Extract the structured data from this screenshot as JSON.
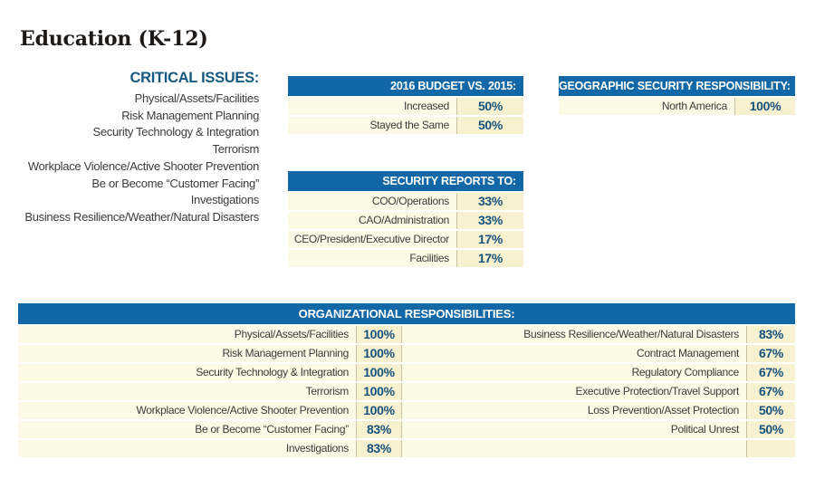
{
  "page_title": "Education (K-12)",
  "critical_issues": {
    "heading": "CRITICAL ISSUES:",
    "items": [
      "Physical/Assets/Facilities",
      "Risk Management Planning",
      "Security Technology & Integration",
      "Terrorism",
      "Workplace Violence/Active Shooter Prevention",
      "Be or Become “Customer Facing”",
      "Investigations",
      "Business Resilience/Weather/Natural Disasters"
    ]
  },
  "budget_table": {
    "header": "2016 BUDGET VS. 2015:",
    "rows": [
      {
        "label": "Increased",
        "value": "50%"
      },
      {
        "label": "Stayed the Same",
        "value": "50%"
      }
    ]
  },
  "geographic_table": {
    "header": "GEOGRAPHIC SECURITY RESPONSIBILITY:",
    "rows": [
      {
        "label": "North America",
        "value": "100%"
      }
    ]
  },
  "reports_table": {
    "header": "SECURITY REPORTS TO:",
    "rows": [
      {
        "label": "COO/Operations",
        "value": "33%"
      },
      {
        "label": "CAO/Administration",
        "value": "33%"
      },
      {
        "label": "CEO/President/Executive Director",
        "value": "17%"
      },
      {
        "label": "Facilities",
        "value": "17%"
      }
    ]
  },
  "org_table": {
    "header": "ORGANIZATIONAL RESPONSIBILITIES:",
    "left_rows": [
      {
        "label": "Physical/Assets/Facilities",
        "value": "100%"
      },
      {
        "label": "Risk Management Planning",
        "value": "100%"
      },
      {
        "label": "Security Technology & Integration",
        "value": "100%"
      },
      {
        "label": "Terrorism",
        "value": "100%"
      },
      {
        "label": "Workplace Violence/Active Shooter Prevention",
        "value": "100%"
      },
      {
        "label": "Be or Become “Customer Facing”",
        "value": "83%"
      },
      {
        "label": "Investigations",
        "value": "83%"
      }
    ],
    "right_rows": [
      {
        "label": "Business Resilience/Weather/Natural Disasters",
        "value": "83%"
      },
      {
        "label": "Contract Management",
        "value": "67%"
      },
      {
        "label": "Regulatory Compliance",
        "value": "67%"
      },
      {
        "label": "Executive Protection/Travel Support",
        "value": "67%"
      },
      {
        "label": "Loss Prevention/Asset Protection",
        "value": "50%"
      },
      {
        "label": "Political Unrest",
        "value": "50%"
      },
      {
        "label": "",
        "value": ""
      }
    ]
  },
  "colors": {
    "header-blue": "#1268a6",
    "value-blue": "#17527c",
    "heading-blue": "#155a80",
    "label-bg": "#fcf9e4",
    "value-bg": "#f7f1d0",
    "divider": "#c9c2a6",
    "label-text": "#3b3b3b",
    "title-text": "#1e1a18"
  }
}
